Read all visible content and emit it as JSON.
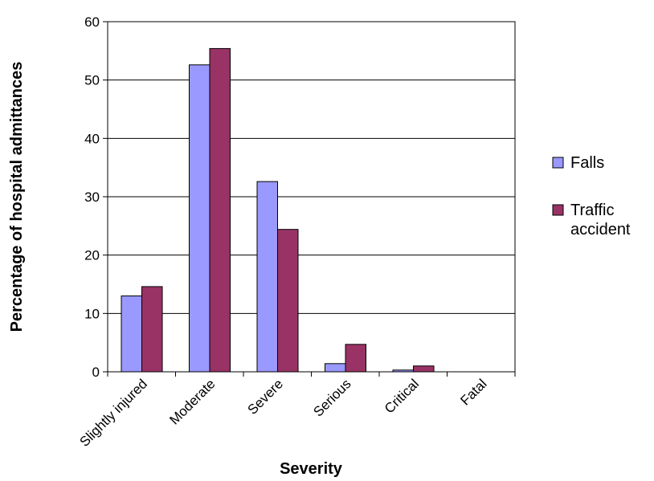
{
  "chart_data": {
    "type": "bar",
    "title": "",
    "xlabel": "Severity",
    "ylabel": "Percentage of hospital admittances",
    "categories": [
      "Slightly injured",
      "Moderate",
      "Severe",
      "Serious",
      "Critical",
      "Fatal"
    ],
    "series": [
      {
        "name": "Falls",
        "values": [
          13.0,
          52.6,
          32.6,
          1.4,
          0.3,
          0.0
        ],
        "color": "#9999ff"
      },
      {
        "name": "Traffic accident",
        "values": [
          14.6,
          55.4,
          24.4,
          4.7,
          1.0,
          0.0
        ],
        "color": "#993366"
      }
    ],
    "ylim": [
      0,
      60
    ],
    "yticks": [
      0,
      10,
      20,
      30,
      40,
      50,
      60
    ],
    "grid": true,
    "legend": {
      "position": "right",
      "entries": [
        [
          "Falls"
        ],
        [
          "Traffic",
          "accident"
        ]
      ]
    }
  }
}
